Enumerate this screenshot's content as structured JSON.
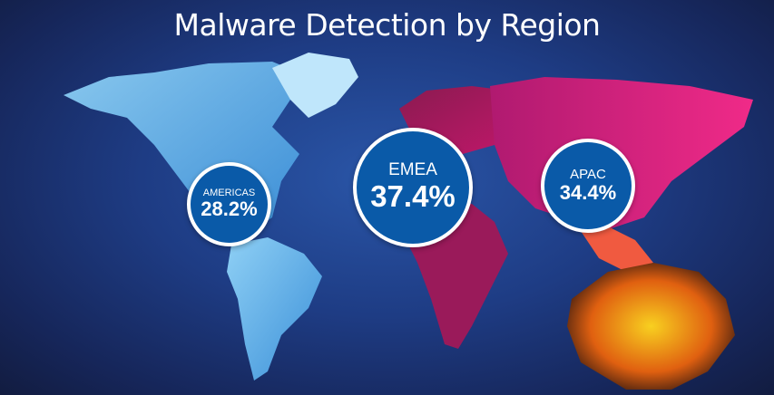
{
  "title": "Malware Detection by Region",
  "regions": [
    {
      "label": "AMERICAS",
      "value": "28.2%",
      "color": "#5aaee8"
    },
    {
      "label": "EMEA",
      "value": "37.4%",
      "color": "#c01a6a"
    },
    {
      "label": "APAC",
      "value": "34.4%",
      "color": "#e83a8a"
    }
  ],
  "colors": {
    "background": "#1e3c84",
    "bubble": "#0a5aa8",
    "oceania": "#f0a020"
  }
}
